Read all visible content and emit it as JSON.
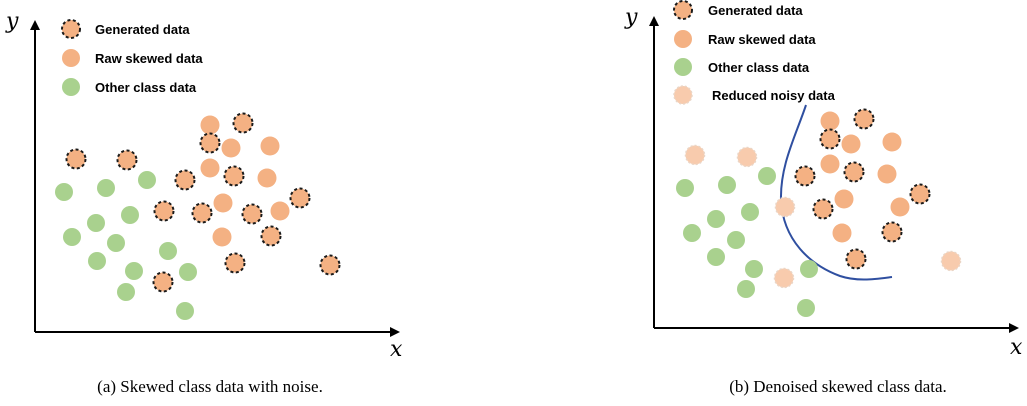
{
  "colors": {
    "generated_fill": "#F4B183",
    "generated_stroke": "#1a1a1a",
    "raw": "#F4B183",
    "other": "#A9D18E",
    "reduced": "#F8CBAD",
    "boundary": "#2F4FA0"
  },
  "panel_a": {
    "caption": "(a) Skewed class data with noise.",
    "x_label": "x",
    "y_label": "y",
    "legend": [
      {
        "kind": "generated",
        "label": "Generated data"
      },
      {
        "kind": "raw",
        "label": "Raw skewed data"
      },
      {
        "kind": "other",
        "label": "Other class data"
      }
    ]
  },
  "panel_b": {
    "caption": "(b) Denoised skewed class data.",
    "x_label": "x",
    "y_label": "y",
    "legend": [
      {
        "kind": "generated",
        "label": "Generated data"
      },
      {
        "kind": "raw",
        "label": "Raw skewed data"
      },
      {
        "kind": "other",
        "label": "Other class data"
      },
      {
        "kind": "reduced",
        "label": "Reduced noisy data"
      }
    ]
  }
}
